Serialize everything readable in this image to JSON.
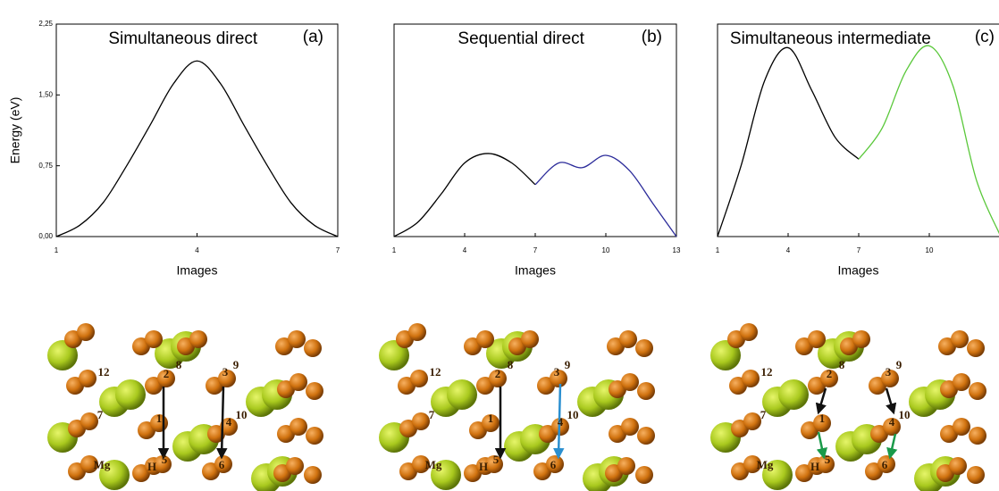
{
  "chart_data": [
    {
      "type": "line",
      "title": "Simultaneous direct",
      "panel": "(a)",
      "x_label": "Images",
      "y_label": "Energy (eV)",
      "x": [
        1,
        1.5,
        2,
        2.5,
        3,
        3.5,
        4,
        4.5,
        5,
        5.5,
        6,
        6.5,
        7
      ],
      "series": [
        {
          "color": "#000000",
          "values": [
            0,
            0.12,
            0.36,
            0.75,
            1.18,
            1.62,
            1.86,
            1.62,
            1.18,
            0.75,
            0.36,
            0.12,
            0
          ]
        }
      ],
      "xlim": [
        1,
        7
      ],
      "xticks": [
        1,
        4,
        7
      ],
      "ylim": [
        0,
        2.25
      ],
      "yticks": [
        {
          "value": 0,
          "label": "0,00"
        },
        {
          "value": 0.75,
          "label": "0,75"
        },
        {
          "value": 1.5,
          "label": "1,50"
        },
        {
          "value": 2.25,
          "label": "2,25"
        }
      ]
    },
    {
      "type": "line",
      "title": "Sequential direct",
      "panel": "(b)",
      "x_label": "Images",
      "x": [
        1,
        2,
        3,
        4,
        5,
        6,
        7,
        8,
        9,
        10,
        11,
        12,
        13
      ],
      "series": [
        {
          "color": "#000000",
          "values": [
            0,
            0.15,
            0.45,
            0.78,
            0.88,
            0.78,
            0.55,
            null,
            null,
            null,
            null,
            null,
            null
          ]
        },
        {
          "color": "#2b2b9a",
          "values": [
            null,
            null,
            null,
            null,
            null,
            null,
            0.55,
            0.78,
            0.73,
            0.86,
            0.7,
            0.35,
            0
          ]
        }
      ],
      "xlim": [
        1,
        13
      ],
      "xticks": [
        1,
        4,
        7,
        10,
        13
      ],
      "ylim": [
        0,
        2.25
      ]
    },
    {
      "type": "line",
      "title": "Simultaneous intermediate",
      "panel": "(c)",
      "x_label": "Images",
      "x": [
        1,
        2,
        3,
        4,
        5,
        6,
        7,
        8,
        9,
        10,
        11,
        12,
        13
      ],
      "series": [
        {
          "color": "#000000",
          "values": [
            0,
            0.75,
            1.65,
            2.0,
            1.55,
            1.05,
            0.82,
            null,
            null,
            null,
            null,
            null,
            null
          ]
        },
        {
          "color": "#5ac83a",
          "values": [
            null,
            null,
            null,
            null,
            null,
            null,
            0.82,
            1.15,
            1.75,
            2.02,
            1.6,
            0.6,
            0.02
          ]
        }
      ],
      "xlim": [
        1,
        13
      ],
      "xticks": [
        1,
        4,
        7,
        10
      ],
      "ylim": [
        0,
        2.25
      ]
    }
  ],
  "structures": [
    {
      "labels": [
        "12",
        "2",
        "8",
        "3",
        "9",
        "7",
        "1",
        "4",
        "10",
        "Mg",
        "H",
        "5",
        "6"
      ]
    },
    {
      "labels": [
        "12",
        "2",
        "8",
        "3",
        "9",
        "7",
        "1",
        "4",
        "10",
        "Mg",
        "H",
        "5",
        "6"
      ]
    },
    {
      "labels": [
        "12",
        "2",
        "8",
        "3",
        "9",
        "7",
        "1",
        "4",
        "10",
        "Mg",
        "H",
        "5",
        "6"
      ]
    }
  ]
}
